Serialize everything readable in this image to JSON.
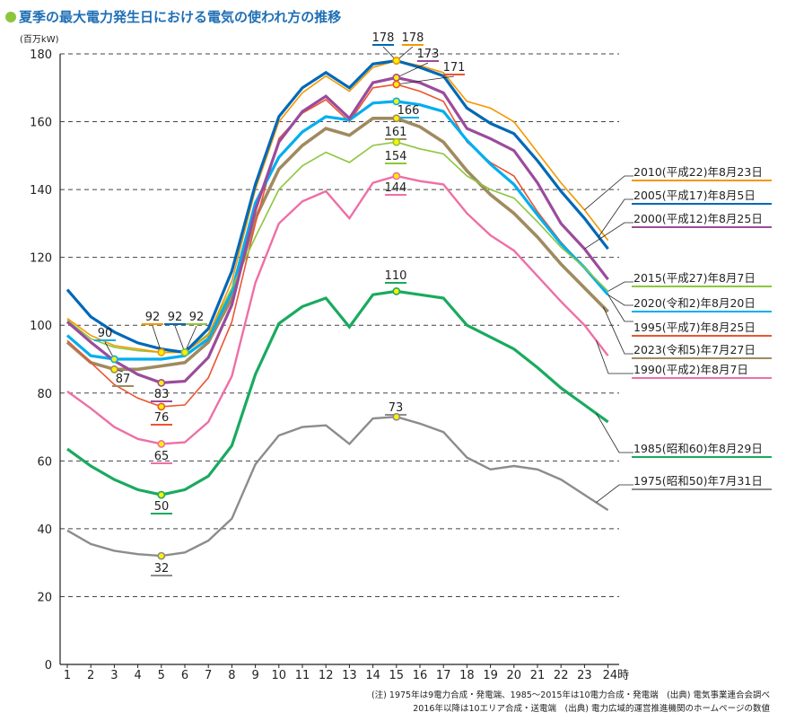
{
  "chart_data": {
    "type": "line",
    "title": "夏季の最大電力発生日における電気の使われ方の推移",
    "ylabel": "(百万kW)",
    "xlabel": "",
    "ylim": [
      0,
      180
    ],
    "yticks": [
      "0",
      "20",
      "40",
      "60",
      "80",
      "100",
      "120",
      "140",
      "160",
      "180"
    ],
    "categories": [
      "1",
      "2",
      "3",
      "4",
      "5",
      "6",
      "7",
      "8",
      "9",
      "10",
      "11",
      "12",
      "13",
      "14",
      "15",
      "16",
      "17",
      "18",
      "19",
      "20",
      "21",
      "22",
      "23",
      "24時"
    ],
    "grid": "horizontal dashed",
    "legend_placement": "right",
    "series": [
      {
        "name": "2010(平成22)年8月23日",
        "color": "#f39800",
        "values": [
          102,
          97,
          94,
          93,
          92,
          92,
          97,
          113,
          140,
          160,
          168.5,
          173.5,
          169,
          176,
          178,
          176.5,
          174.5,
          166,
          164,
          160,
          151,
          142,
          134,
          125
        ]
      },
      {
        "name": "2005(平成17)年8月5日",
        "color": "#0068b7",
        "values": [
          110.5,
          102.5,
          98,
          94.8,
          93,
          92,
          99,
          116,
          141.5,
          161.5,
          170,
          174.5,
          170,
          177,
          178,
          176,
          173.5,
          164,
          159.5,
          156.5,
          148.5,
          139.5,
          131.5,
          122.5
        ]
      },
      {
        "name": "2000(平成12)年8月25日",
        "color": "#9b4b9b",
        "values": [
          101,
          95,
          89.5,
          85.5,
          83,
          83.5,
          90.5,
          106,
          134,
          154,
          163,
          167.5,
          161,
          171.5,
          173,
          171.5,
          168.5,
          158,
          155,
          151.5,
          142,
          130,
          122.5,
          113.5
        ]
      },
      {
        "name": "2015(平成27)年8月7日",
        "color": "#8cc63f",
        "values": [
          101.5,
          96,
          93.5,
          92.5,
          92,
          92,
          97.5,
          111,
          126,
          140,
          147,
          151,
          148,
          153,
          154,
          152,
          150.5,
          144,
          140,
          137.5,
          130.5,
          123,
          117,
          110
        ]
      },
      {
        "name": "2020(令和2)年8月20日",
        "color": "#00aeef",
        "values": [
          97,
          91,
          90,
          90,
          90,
          91,
          96,
          110,
          136,
          149.5,
          157,
          161.5,
          160.5,
          165.5,
          166,
          165,
          163,
          154.5,
          147.5,
          141.5,
          132.5,
          124,
          117,
          109
        ]
      },
      {
        "name": "1995(平成7)年8月25日",
        "color": "#ea5532",
        "values": [
          95.5,
          89,
          82.5,
          78.5,
          76,
          76.5,
          84.5,
          101,
          130,
          155,
          162.5,
          166.5,
          160,
          170,
          171,
          169,
          166,
          154,
          148,
          144,
          133.5,
          124.5,
          117,
          109
        ]
      },
      {
        "name": "2023(令和5)年7月27日",
        "color": "#a08a5f",
        "values": [
          95,
          89,
          87,
          87,
          88,
          89,
          95,
          108,
          131.5,
          146,
          153,
          158,
          156,
          161,
          161,
          158.5,
          154,
          145.5,
          138.5,
          133,
          126,
          118,
          111,
          104
        ]
      },
      {
        "name": "1990(平成2)年8月7日",
        "color": "#ee6fa6",
        "values": [
          80.5,
          75.5,
          70,
          66.5,
          65,
          65.5,
          71.5,
          85,
          112.5,
          130,
          136.5,
          139.5,
          131.5,
          142,
          144,
          142.5,
          141.5,
          133,
          126.5,
          122,
          114.5,
          107,
          100,
          91
        ]
      },
      {
        "name": "1985(昭和60)年8月29日",
        "color": "#1aaa5f",
        "values": [
          63.5,
          58.5,
          54.5,
          51.5,
          50,
          51.5,
          55.5,
          64.5,
          85.5,
          100.5,
          105.5,
          108,
          99.5,
          109,
          110,
          109,
          108,
          100,
          96.5,
          93,
          87.5,
          81.5,
          76.5,
          71.5
        ]
      },
      {
        "name": "1975(昭和50)年7月31日",
        "color": "#8c8c8c",
        "values": [
          39.5,
          35.5,
          33.5,
          32.5,
          32,
          33,
          36.5,
          43,
          59,
          67.5,
          70,
          70.5,
          65,
          72.5,
          73,
          71,
          68.5,
          61,
          57.5,
          58.5,
          57.5,
          54.5,
          50,
          45.5
        ]
      }
    ],
    "annotations": [
      {
        "series": 1,
        "hour": 15,
        "text": "178"
      },
      {
        "series": 0,
        "hour": 15,
        "text": "178"
      },
      {
        "series": 2,
        "hour": 15,
        "text": "173"
      },
      {
        "series": 5,
        "hour": 15,
        "text": "171"
      },
      {
        "series": 4,
        "hour": 15,
        "text": "166"
      },
      {
        "series": 6,
        "hour": 15,
        "text": "161"
      },
      {
        "series": 3,
        "hour": 15,
        "text": "154"
      },
      {
        "series": 7,
        "hour": 15,
        "text": "144"
      },
      {
        "series": 8,
        "hour": 15,
        "text": "110"
      },
      {
        "series": 9,
        "hour": 15,
        "text": "73"
      },
      {
        "series": 4,
        "hour": 3,
        "text": "90"
      },
      {
        "series": 0,
        "hour": 5,
        "text": "92"
      },
      {
        "series": 1,
        "hour": 6,
        "text": "92"
      },
      {
        "series": 3,
        "hour": 6,
        "text": "92"
      },
      {
        "series": 6,
        "hour": 3,
        "text": "87"
      },
      {
        "series": 2,
        "hour": 5,
        "text": "83"
      },
      {
        "series": 5,
        "hour": 5,
        "text": "76"
      },
      {
        "series": 7,
        "hour": 5,
        "text": "65"
      },
      {
        "series": 8,
        "hour": 5,
        "text": "50"
      },
      {
        "series": 9,
        "hour": 5,
        "text": "32"
      }
    ],
    "notes": [
      "(注) 1975年は9電力合成・発電端、1985〜2015年は10電力合成・発電端　(出典) 電気事業連合会調べ",
      "2016年以降は10エリア合成・送電端　(出典) 電力広域的運営推進機関のホームページの数値"
    ]
  }
}
